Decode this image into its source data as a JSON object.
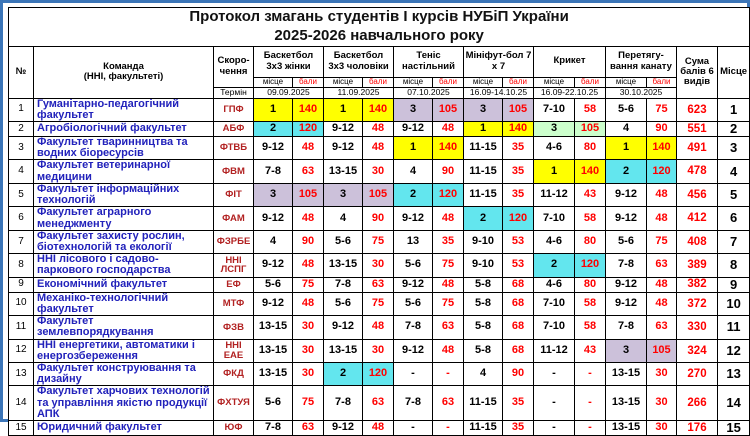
{
  "title": {
    "line1": "Протокол змагань студентів І курсів НУБіП України",
    "line2": "2025-2026 навчального року"
  },
  "header": {
    "num_label": "№",
    "team_line1": "Команда",
    "team_line2": "(ННІ, факультеті)",
    "abbr_label": "Скоро-чення",
    "termin_label": "Термін",
    "place_sub_label": "місце",
    "points_sub_label": "бали",
    "sum_label": "Сума балів 6 видів",
    "place_label": "Місце",
    "sports": [
      {
        "name": "Баскетбол 3х3 жінки",
        "date": "09.09.2025"
      },
      {
        "name": "Баскетбол 3х3 чоловіки",
        "date": "11.09.2025"
      },
      {
        "name": "Теніс настільний",
        "date": "07.10.2025"
      },
      {
        "name": "Мініфут-бол 7 х 7",
        "date": "16.09-14.10.25"
      },
      {
        "name": "Крикет",
        "date": "16.09-22.10.25"
      },
      {
        "name": "Перетягу-вання канату",
        "date": "30.10.2025"
      }
    ]
  },
  "colors": {
    "first": "#FFFF00",
    "second": "#63E6EE",
    "third": "#CCC1DA",
    "third_alt": "#CCFFCC",
    "frame": "#3C76B8",
    "team_text": "#2222BB",
    "abbr_text": "#B22222",
    "points_text": "#FF0000"
  },
  "rows": [
    {
      "num": "1",
      "team": "Гуманітарно-педагогічний факультет",
      "abbr": "ГПФ",
      "results": [
        {
          "place": "1",
          "points": "140",
          "bg": "first"
        },
        {
          "place": "1",
          "points": "140",
          "bg": "first"
        },
        {
          "place": "3",
          "points": "105",
          "bg": "third"
        },
        {
          "place": "3",
          "points": "105",
          "bg": "third"
        },
        {
          "place": "7-10",
          "points": "58"
        },
        {
          "place": "5-6",
          "points": "75"
        }
      ],
      "sum": "623",
      "place": "1"
    },
    {
      "num": "2",
      "team": "Агробіологічний факультет",
      "abbr": "АБФ",
      "results": [
        {
          "place": "2",
          "points": "120",
          "bg": "second"
        },
        {
          "place": "9-12",
          "points": "48"
        },
        {
          "place": "9-12",
          "points": "48"
        },
        {
          "place": "1",
          "points": "140",
          "bg": "first"
        },
        {
          "place": "3",
          "points": "105",
          "bg": "third_alt"
        },
        {
          "place": "4",
          "points": "90"
        }
      ],
      "sum": "551",
      "place": "2"
    },
    {
      "num": "3",
      "team": "Факультет тваринництва та водних біоресурсів",
      "abbr": "ФТВБ",
      "results": [
        {
          "place": "9-12",
          "points": "48"
        },
        {
          "place": "9-12",
          "points": "48"
        },
        {
          "place": "1",
          "points": "140",
          "bg": "first"
        },
        {
          "place": "11-15",
          "points": "35"
        },
        {
          "place": "4-6",
          "points": "80"
        },
        {
          "place": "1",
          "points": "140",
          "bg": "first"
        }
      ],
      "sum": "491",
      "place": "3"
    },
    {
      "num": "4",
      "team": "Факультет ветеринарної медицини",
      "abbr": "ФВМ",
      "results": [
        {
          "place": "7-8",
          "points": "63"
        },
        {
          "place": "13-15",
          "points": "30"
        },
        {
          "place": "4",
          "points": "90"
        },
        {
          "place": "11-15",
          "points": "35"
        },
        {
          "place": "1",
          "points": "140",
          "bg": "first"
        },
        {
          "place": "2",
          "points": "120",
          "bg": "second"
        }
      ],
      "sum": "478",
      "place": "4"
    },
    {
      "num": "5",
      "team": "Факультет інформаційних технологій",
      "abbr": "ФІТ",
      "results": [
        {
          "place": "3",
          "points": "105",
          "bg": "third"
        },
        {
          "place": "3",
          "points": "105",
          "bg": "third"
        },
        {
          "place": "2",
          "points": "120",
          "bg": "second"
        },
        {
          "place": "11-15",
          "points": "35"
        },
        {
          "place": "11-12",
          "points": "43"
        },
        {
          "place": "9-12",
          "points": "48"
        }
      ],
      "sum": "456",
      "place": "5"
    },
    {
      "num": "6",
      "team": "Факультет аграрного менеджменту",
      "abbr": "ФАМ",
      "results": [
        {
          "place": "9-12",
          "points": "48"
        },
        {
          "place": "4",
          "points": "90"
        },
        {
          "place": "9-12",
          "points": "48"
        },
        {
          "place": "2",
          "points": "120",
          "bg": "second"
        },
        {
          "place": "7-10",
          "points": "58"
        },
        {
          "place": "9-12",
          "points": "48"
        }
      ],
      "sum": "412",
      "place": "6"
    },
    {
      "num": "7",
      "team": "Факультет захисту рослин, біотехнологій та екології",
      "abbr": "ФЗРБЕ",
      "results": [
        {
          "place": "4",
          "points": "90"
        },
        {
          "place": "5-6",
          "points": "75"
        },
        {
          "place": "13",
          "points": "35"
        },
        {
          "place": "9-10",
          "points": "53"
        },
        {
          "place": "4-6",
          "points": "80"
        },
        {
          "place": "5-6",
          "points": "75"
        }
      ],
      "sum": "408",
      "place": "7"
    },
    {
      "num": "8",
      "team": "ННІ лісового і садово-паркового господарства",
      "abbr": "ННІ ЛСПГ",
      "results": [
        {
          "place": "9-12",
          "points": "48"
        },
        {
          "place": "13-15",
          "points": "30"
        },
        {
          "place": "5-6",
          "points": "75"
        },
        {
          "place": "9-10",
          "points": "53"
        },
        {
          "place": "2",
          "points": "120",
          "bg": "second"
        },
        {
          "place": "7-8",
          "points": "63"
        }
      ],
      "sum": "389",
      "place": "8"
    },
    {
      "num": "9",
      "team": "Економічний факультет",
      "abbr": "ЕФ",
      "results": [
        {
          "place": "5-6",
          "points": "75"
        },
        {
          "place": "7-8",
          "points": "63"
        },
        {
          "place": "9-12",
          "points": "48"
        },
        {
          "place": "5-8",
          "points": "68"
        },
        {
          "place": "4-6",
          "points": "80"
        },
        {
          "place": "9-12",
          "points": "48"
        }
      ],
      "sum": "382",
      "place": "9"
    },
    {
      "num": "10",
      "team": "Механіко-технологічний факультет",
      "abbr": "МТФ",
      "results": [
        {
          "place": "9-12",
          "points": "48"
        },
        {
          "place": "5-6",
          "points": "75"
        },
        {
          "place": "5-6",
          "points": "75"
        },
        {
          "place": "5-8",
          "points": "68"
        },
        {
          "place": "7-10",
          "points": "58"
        },
        {
          "place": "9-12",
          "points": "48"
        }
      ],
      "sum": "372",
      "place": "10"
    },
    {
      "num": "11",
      "team": "Факультет землевпорядкування",
      "abbr": "ФЗВ",
      "results": [
        {
          "place": "13-15",
          "points": "30"
        },
        {
          "place": "9-12",
          "points": "48"
        },
        {
          "place": "7-8",
          "points": "63"
        },
        {
          "place": "5-8",
          "points": "68"
        },
        {
          "place": "7-10",
          "points": "58"
        },
        {
          "place": "7-8",
          "points": "63"
        }
      ],
      "sum": "330",
      "place": "11"
    },
    {
      "num": "12",
      "team": "ННІ енергетики, автоматики і енергозбереження",
      "abbr": "ННІ ЕАЕ",
      "results": [
        {
          "place": "13-15",
          "points": "30"
        },
        {
          "place": "13-15",
          "points": "30"
        },
        {
          "place": "9-12",
          "points": "48"
        },
        {
          "place": "5-8",
          "points": "68"
        },
        {
          "place": "11-12",
          "points": "43"
        },
        {
          "place": "3",
          "points": "105",
          "bg": "third"
        }
      ],
      "sum": "324",
      "place": "12"
    },
    {
      "num": "13",
      "team": "Факультет конструювання та дизайну",
      "abbr": "ФКД",
      "results": [
        {
          "place": "13-15",
          "points": "30"
        },
        {
          "place": "2",
          "points": "120",
          "bg": "second"
        },
        {
          "place": "-",
          "points": "-"
        },
        {
          "place": "4",
          "points": "90"
        },
        {
          "place": "-",
          "points": "-"
        },
        {
          "place": "13-15",
          "points": "30"
        }
      ],
      "sum": "270",
      "place": "13"
    },
    {
      "num": "14",
      "team": "Факультет харчових технологій та управління якістю продукції АПК",
      "abbr": "ФХТУЯ",
      "results": [
        {
          "place": "5-6",
          "points": "75"
        },
        {
          "place": "7-8",
          "points": "63"
        },
        {
          "place": "7-8",
          "points": "63"
        },
        {
          "place": "11-15",
          "points": "35"
        },
        {
          "place": "-",
          "points": "-"
        },
        {
          "place": "13-15",
          "points": "30"
        }
      ],
      "sum": "266",
      "place": "14"
    },
    {
      "num": "15",
      "team": "Юридичний факультет",
      "abbr": "ЮФ",
      "results": [
        {
          "place": "7-8",
          "points": "63"
        },
        {
          "place": "9-12",
          "points": "48"
        },
        {
          "place": "-",
          "points": "-"
        },
        {
          "place": "11-15",
          "points": "35"
        },
        {
          "place": "-",
          "points": "-"
        },
        {
          "place": "13-15",
          "points": "30"
        }
      ],
      "sum": "176",
      "place": "15"
    }
  ]
}
